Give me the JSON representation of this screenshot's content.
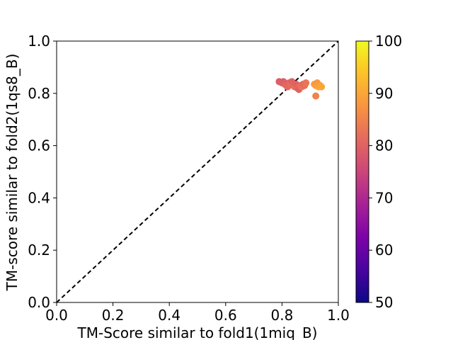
{
  "chart_data": {
    "type": "scatter",
    "xlabel": "TM-Score similar to fold1(1miq_B)",
    "ylabel": "TM-score similar to fold2(1qs8_B)",
    "xlim": [
      0.0,
      1.0
    ],
    "ylim": [
      0.0,
      1.0
    ],
    "xticks": [
      "0.0",
      "0.2",
      "0.4",
      "0.6",
      "0.8",
      "1.0"
    ],
    "yticks": [
      "0.0",
      "0.2",
      "0.4",
      "0.6",
      "0.8",
      "1.0"
    ],
    "grid": false,
    "reference_line": {
      "style": "dashed",
      "color": "#000000",
      "from": [
        0,
        0
      ],
      "to": [
        1,
        1
      ]
    },
    "colorbar": {
      "colormap": "plasma",
      "range": [
        50,
        100
      ],
      "ticks": [
        "50",
        "60",
        "70",
        "80",
        "90",
        "100"
      ]
    },
    "points": [
      {
        "x": 0.79,
        "y": 0.845,
        "c": 79
      },
      {
        "x": 0.8,
        "y": 0.84,
        "c": 80
      },
      {
        "x": 0.805,
        "y": 0.845,
        "c": 79
      },
      {
        "x": 0.81,
        "y": 0.835,
        "c": 80
      },
      {
        "x": 0.815,
        "y": 0.83,
        "c": 81
      },
      {
        "x": 0.82,
        "y": 0.825,
        "c": 81
      },
      {
        "x": 0.825,
        "y": 0.84,
        "c": 80
      },
      {
        "x": 0.83,
        "y": 0.835,
        "c": 82
      },
      {
        "x": 0.835,
        "y": 0.845,
        "c": 80
      },
      {
        "x": 0.84,
        "y": 0.83,
        "c": 81
      },
      {
        "x": 0.845,
        "y": 0.825,
        "c": 82
      },
      {
        "x": 0.85,
        "y": 0.835,
        "c": 80
      },
      {
        "x": 0.855,
        "y": 0.82,
        "c": 81
      },
      {
        "x": 0.86,
        "y": 0.815,
        "c": 80
      },
      {
        "x": 0.865,
        "y": 0.83,
        "c": 82
      },
      {
        "x": 0.87,
        "y": 0.825,
        "c": 83
      },
      {
        "x": 0.875,
        "y": 0.835,
        "c": 81
      },
      {
        "x": 0.88,
        "y": 0.83,
        "c": 82
      },
      {
        "x": 0.885,
        "y": 0.84,
        "c": 83
      },
      {
        "x": 0.915,
        "y": 0.835,
        "c": 88
      },
      {
        "x": 0.92,
        "y": 0.83,
        "c": 89
      },
      {
        "x": 0.925,
        "y": 0.84,
        "c": 88
      },
      {
        "x": 0.93,
        "y": 0.825,
        "c": 90
      },
      {
        "x": 0.935,
        "y": 0.83,
        "c": 89
      },
      {
        "x": 0.94,
        "y": 0.825,
        "c": 90
      },
      {
        "x": 0.92,
        "y": 0.79,
        "c": 85
      }
    ]
  }
}
